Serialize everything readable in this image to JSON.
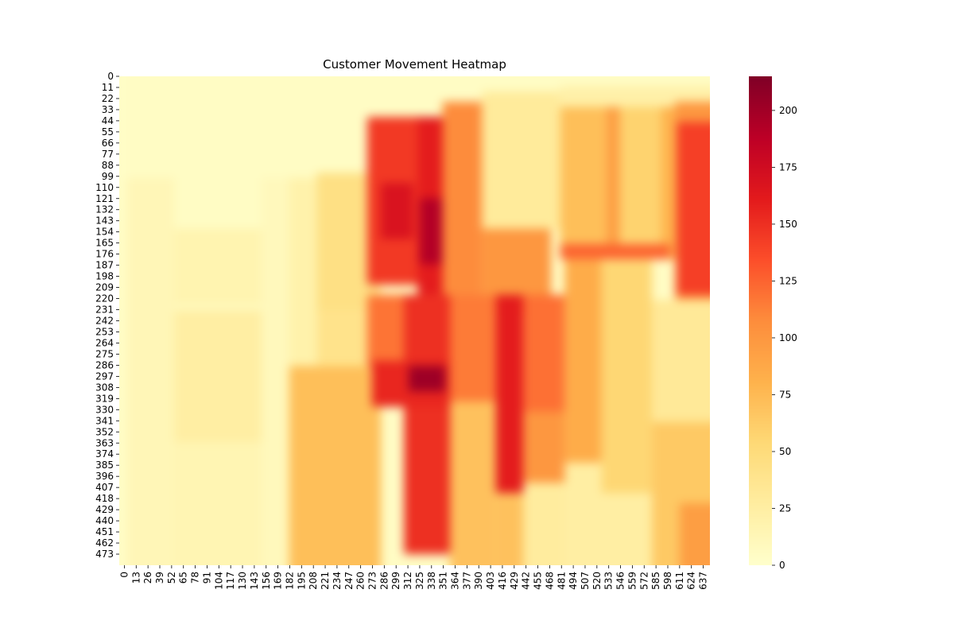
{
  "chart_data": {
    "type": "heatmap",
    "title": "Customer Movement Heatmap",
    "xlabel": "",
    "ylabel": "",
    "grid": false,
    "colormap": "YlOrRd",
    "color_range": [
      0,
      215
    ],
    "x_extent": [
      0,
      643
    ],
    "y_extent": [
      0,
      481
    ],
    "x_tick_labels": [
      "0",
      "13",
      "26",
      "39",
      "52",
      "65",
      "78",
      "91",
      "104",
      "117",
      "130",
      "143",
      "156",
      "169",
      "182",
      "195",
      "208",
      "221",
      "234",
      "247",
      "260",
      "273",
      "286",
      "299",
      "312",
      "325",
      "338",
      "351",
      "364",
      "377",
      "390",
      "403",
      "416",
      "429",
      "442",
      "455",
      "468",
      "481",
      "494",
      "507",
      "520",
      "533",
      "546",
      "559",
      "572",
      "585",
      "598",
      "611",
      "624",
      "637"
    ],
    "y_tick_labels": [
      "0",
      "11",
      "22",
      "33",
      "44",
      "55",
      "66",
      "77",
      "88",
      "99",
      "110",
      "121",
      "132",
      "143",
      "154",
      "165",
      "176",
      "187",
      "198",
      "209",
      "220",
      "231",
      "242",
      "253",
      "264",
      "275",
      "286",
      "297",
      "308",
      "319",
      "330",
      "341",
      "352",
      "363",
      "374",
      "385",
      "396",
      "407",
      "418",
      "429",
      "440",
      "451",
      "462",
      "473"
    ],
    "colorbar": {
      "position": "right",
      "ticks": [
        0,
        25,
        50,
        75,
        100,
        125,
        150,
        175,
        200
      ]
    },
    "regions": [
      {
        "x": [
          0,
          8
        ],
        "y": [
          0,
          481
        ],
        "value": 3
      },
      {
        "x": [
          8,
          250
        ],
        "y": [
          0,
          100
        ],
        "value": 5
      },
      {
        "x": [
          8,
          60
        ],
        "y": [
          100,
          481
        ],
        "value": 13
      },
      {
        "x": [
          60,
          155
        ],
        "y": [
          150,
          225
        ],
        "value": 17
      },
      {
        "x": [
          60,
          155
        ],
        "y": [
          230,
          360
        ],
        "value": 25
      },
      {
        "x": [
          60,
          155
        ],
        "y": [
          360,
          481
        ],
        "value": 15
      },
      {
        "x": [
          155,
          185
        ],
        "y": [
          100,
          481
        ],
        "value": 10
      },
      {
        "x": [
          185,
          215
        ],
        "y": [
          100,
          285
        ],
        "value": 20
      },
      {
        "x": [
          215,
          285
        ],
        "y": [
          95,
          230
        ],
        "value": 45
      },
      {
        "x": [
          215,
          285
        ],
        "y": [
          230,
          285
        ],
        "value": 40
      },
      {
        "x": [
          185,
          285
        ],
        "y": [
          285,
          481
        ],
        "value": 72
      },
      {
        "x": [
          270,
          330
        ],
        "y": [
          40,
          205
        ],
        "value": 145
      },
      {
        "x": [
          285,
          320
        ],
        "y": [
          105,
          160
        ],
        "value": 168
      },
      {
        "x": [
          325,
          355
        ],
        "y": [
          40,
          215
        ],
        "value": 160
      },
      {
        "x": [
          327,
          352
        ],
        "y": [
          120,
          185
        ],
        "value": 192
      },
      {
        "x": [
          352,
          395
        ],
        "y": [
          25,
          215
        ],
        "value": 108
      },
      {
        "x": [
          395,
          480
        ],
        "y": [
          15,
          150
        ],
        "value": 30
      },
      {
        "x": [
          480,
          645
        ],
        "y": [
          10,
          30
        ],
        "value": 22
      },
      {
        "x": [
          480,
          530
        ],
        "y": [
          30,
          180
        ],
        "value": 72
      },
      {
        "x": [
          530,
          545
        ],
        "y": [
          30,
          180
        ],
        "value": 95
      },
      {
        "x": [
          545,
          590
        ],
        "y": [
          30,
          180
        ],
        "value": 58
      },
      {
        "x": [
          590,
          605
        ],
        "y": [
          30,
          180
        ],
        "value": 80
      },
      {
        "x": [
          605,
          645
        ],
        "y": [
          25,
          220
        ],
        "value": 100
      },
      {
        "x": [
          607,
          645
        ],
        "y": [
          45,
          215
        ],
        "value": 142
      },
      {
        "x": [
          480,
          600
        ],
        "y": [
          165,
          180
        ],
        "value": 125
      },
      {
        "x": [
          395,
          470
        ],
        "y": [
          150,
          235
        ],
        "value": 100
      },
      {
        "x": [
          270,
          330
        ],
        "y": [
          215,
          285
        ],
        "value": 118
      },
      {
        "x": [
          310,
          365
        ],
        "y": [
          215,
          470
        ],
        "value": 150
      },
      {
        "x": [
          275,
          360
        ],
        "y": [
          280,
          325
        ],
        "value": 155
      },
      {
        "x": [
          315,
          355
        ],
        "y": [
          285,
          310
        ],
        "value": 202
      },
      {
        "x": [
          360,
          410
        ],
        "y": [
          215,
          320
        ],
        "value": 115
      },
      {
        "x": [
          360,
          410
        ],
        "y": [
          320,
          481
        ],
        "value": 70
      },
      {
        "x": [
          410,
          440
        ],
        "y": [
          215,
          410
        ],
        "value": 160
      },
      {
        "x": [
          410,
          440
        ],
        "y": [
          410,
          481
        ],
        "value": 70
      },
      {
        "x": [
          440,
          485
        ],
        "y": [
          215,
          330
        ],
        "value": 120
      },
      {
        "x": [
          440,
          485
        ],
        "y": [
          330,
          400
        ],
        "value": 100
      },
      {
        "x": [
          440,
          485
        ],
        "y": [
          400,
          481
        ],
        "value": 28
      },
      {
        "x": [
          485,
          525
        ],
        "y": [
          180,
          380
        ],
        "value": 85
      },
      {
        "x": [
          485,
          525
        ],
        "y": [
          380,
          481
        ],
        "value": 25
      },
      {
        "x": [
          525,
          580
        ],
        "y": [
          180,
          410
        ],
        "value": 55
      },
      {
        "x": [
          525,
          580
        ],
        "y": [
          410,
          481
        ],
        "value": 25
      },
      {
        "x": [
          580,
          645
        ],
        "y": [
          220,
          340
        ],
        "value": 32
      },
      {
        "x": [
          580,
          645
        ],
        "y": [
          340,
          481
        ],
        "value": 65
      },
      {
        "x": [
          610,
          645
        ],
        "y": [
          420,
          481
        ],
        "value": 95
      }
    ]
  }
}
